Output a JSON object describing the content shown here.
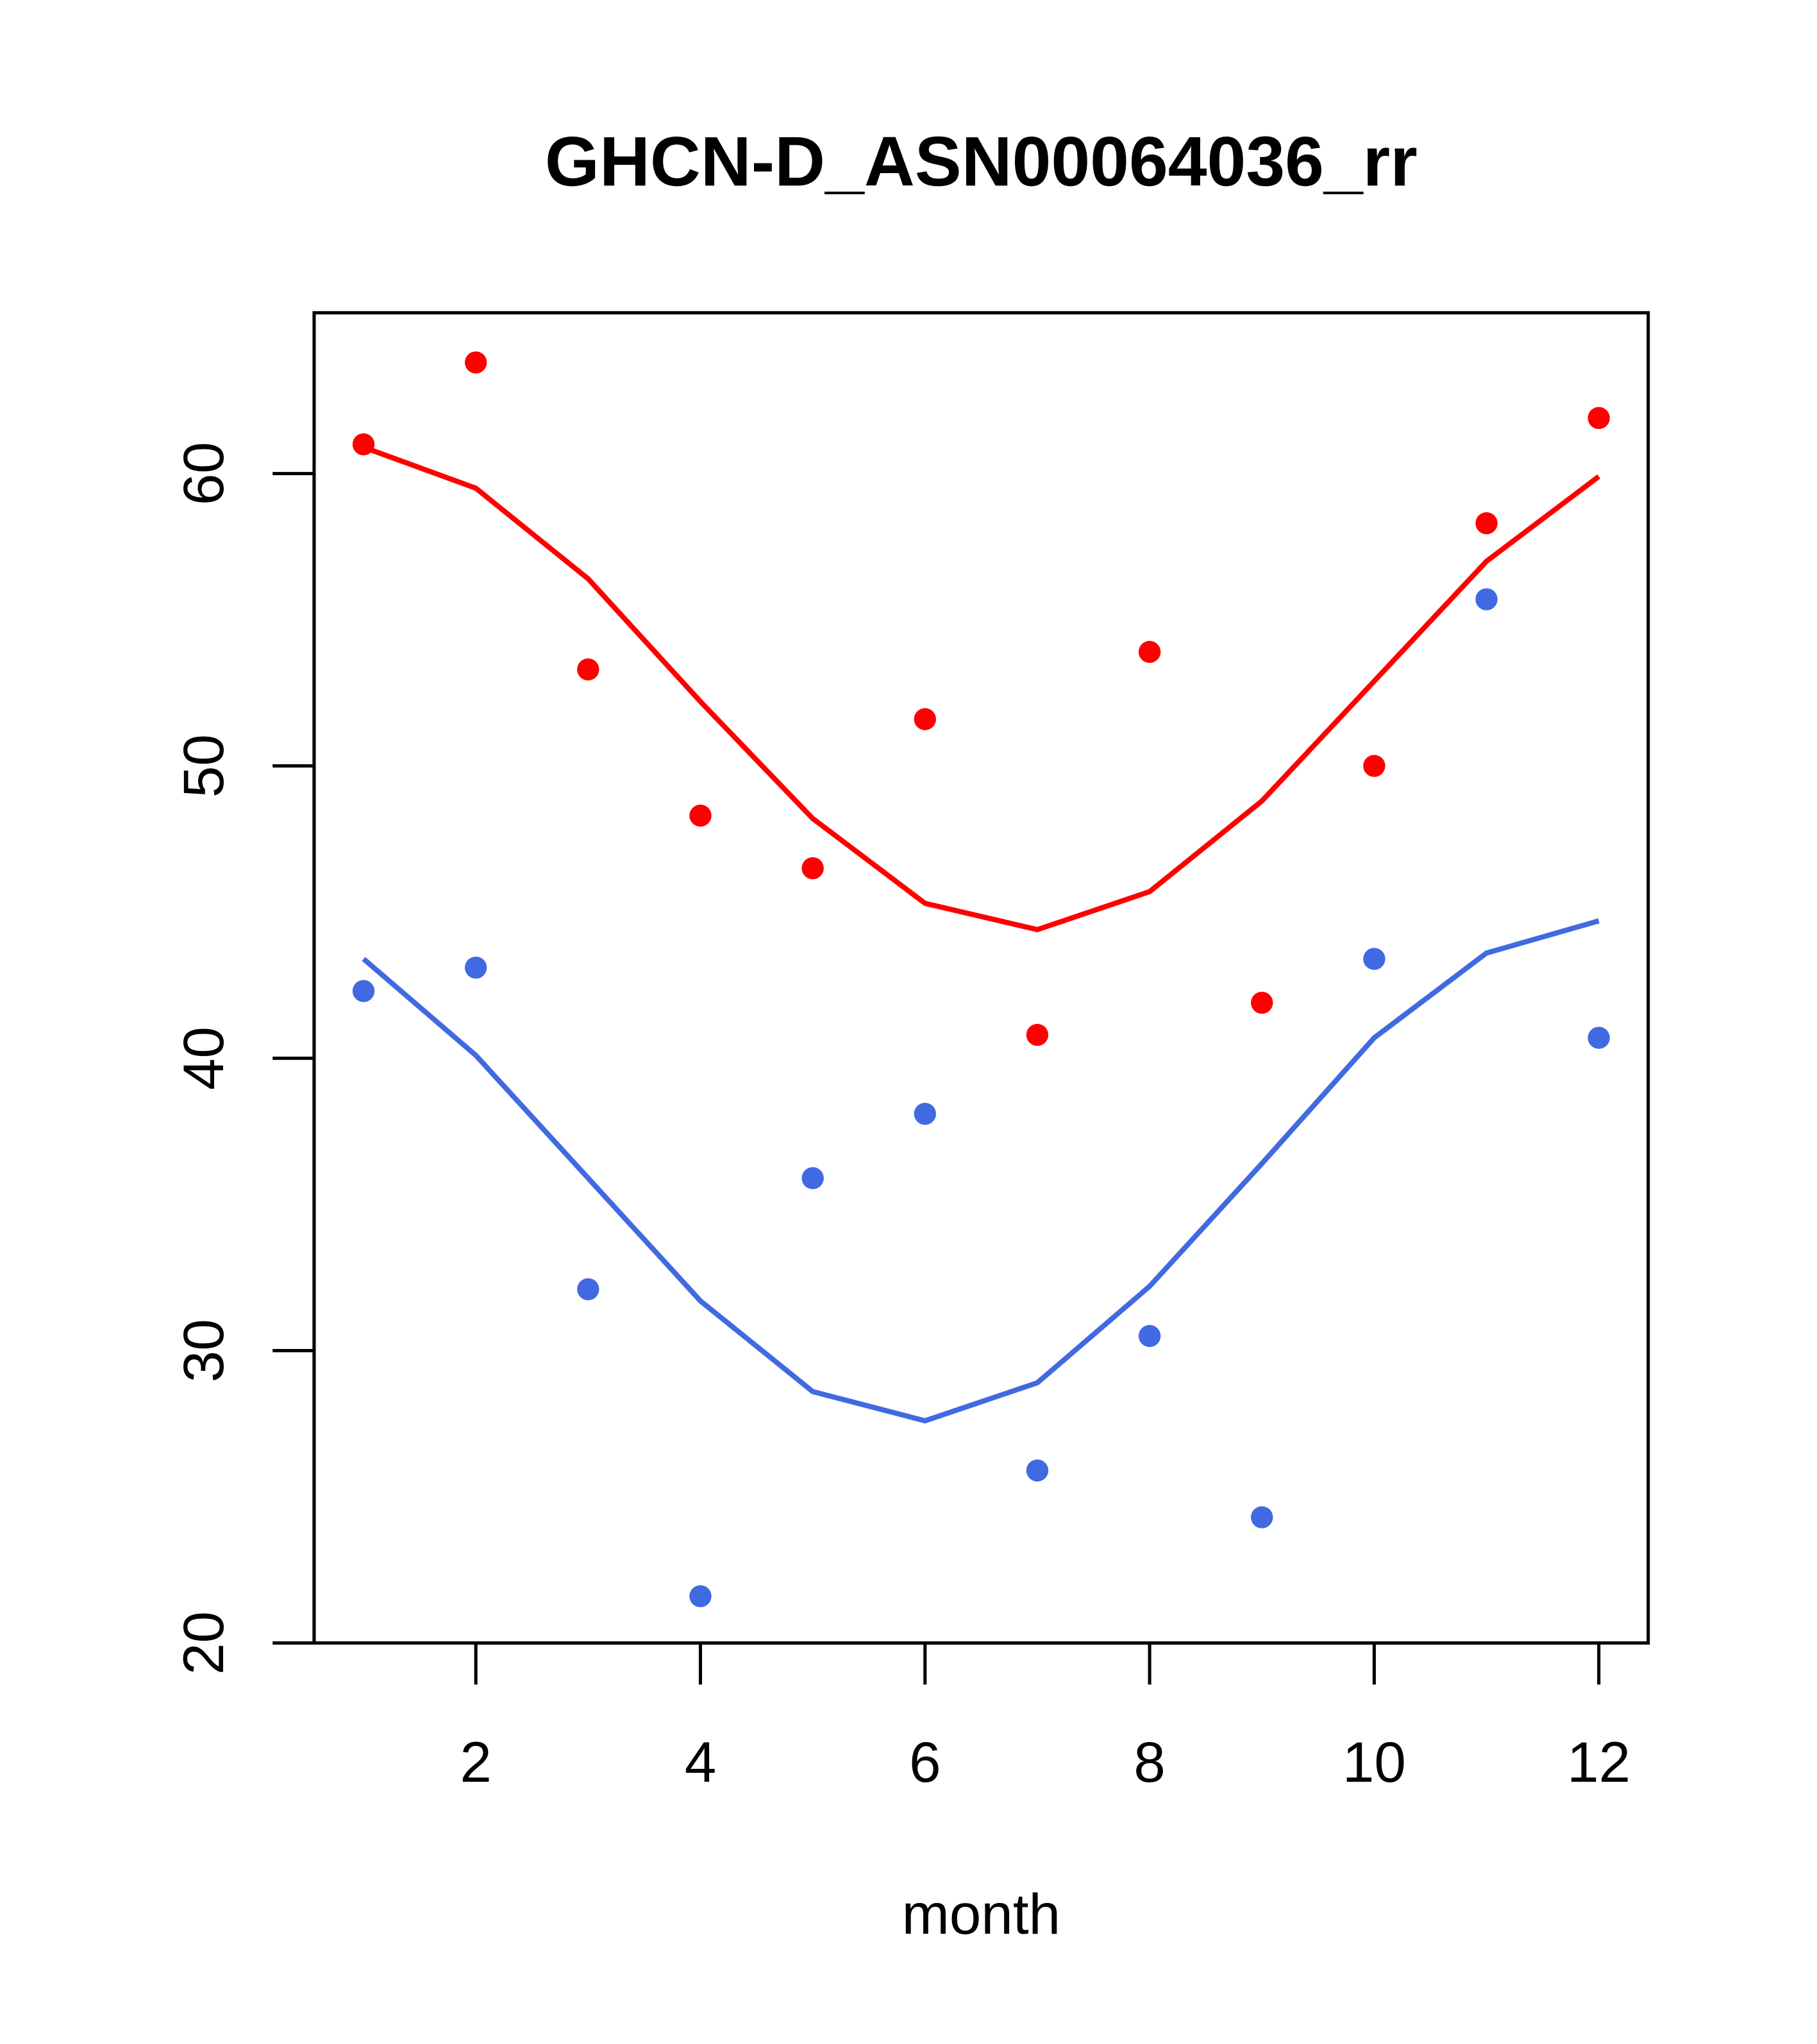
{
  "chart_data": {
    "type": "scatter",
    "title": "GHCN-D_ASN00064036_rr",
    "xlabel": "month",
    "ylabel": "",
    "xlim": [
      0.56,
      12.44
    ],
    "ylim": [
      20,
      65.5
    ],
    "xticks": [
      2,
      4,
      6,
      8,
      10,
      12
    ],
    "yticks": [
      20,
      30,
      40,
      50,
      60
    ],
    "grid": false,
    "x": [
      1,
      2,
      3,
      4,
      5,
      6,
      7,
      8,
      9,
      10,
      11,
      12
    ],
    "series": [
      {
        "name": "red points",
        "kind": "points",
        "color": "#FF0000",
        "values": [
          61.0,
          63.8,
          53.3,
          48.3,
          46.5,
          51.6,
          40.8,
          53.9,
          41.9,
          50.0,
          58.3,
          61.9
        ]
      },
      {
        "name": "red line",
        "kind": "line",
        "color": "#FF0000",
        "values": [
          60.9,
          59.5,
          56.4,
          52.2,
          48.2,
          45.3,
          44.4,
          45.7,
          48.8,
          52.9,
          57.0,
          59.9
        ]
      },
      {
        "name": "blue points",
        "kind": "points",
        "color": "#4169E1",
        "values": [
          42.3,
          43.1,
          32.1,
          21.6,
          35.9,
          38.1,
          25.9,
          30.5,
          24.3,
          43.4,
          55.7,
          40.7
        ]
      },
      {
        "name": "blue line",
        "kind": "line",
        "color": "#4169E1",
        "values": [
          43.4,
          40.1,
          35.9,
          31.7,
          28.6,
          27.6,
          28.9,
          32.2,
          36.4,
          40.7,
          43.6,
          44.7
        ]
      }
    ]
  }
}
